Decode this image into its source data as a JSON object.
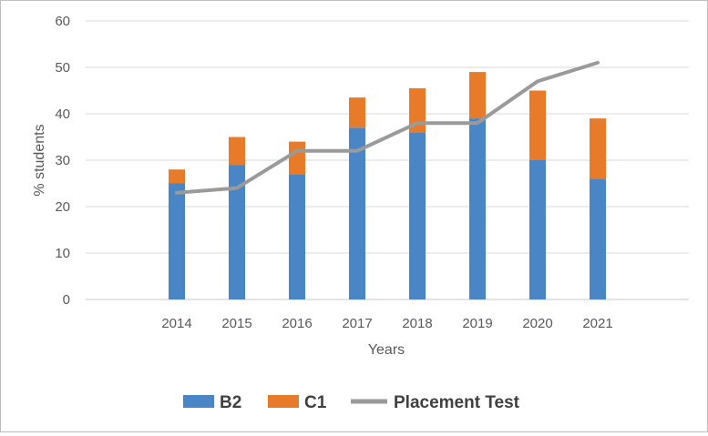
{
  "chart_data": {
    "type": "bar",
    "stacked": true,
    "title": "",
    "xlabel": "Years",
    "ylabel": "% students",
    "ylim": [
      0,
      60
    ],
    "yticks": [
      0,
      10,
      20,
      30,
      40,
      50,
      60
    ],
    "grid": true,
    "legend_position": "bottom",
    "categories": [
      "2014",
      "2015",
      "2016",
      "2017",
      "2018",
      "2019",
      "2020",
      "2021"
    ],
    "series": [
      {
        "name": "B2",
        "kind": "bar",
        "color": "#4a86c6",
        "values": [
          25,
          29,
          27,
          37,
          36,
          39,
          30,
          26
        ]
      },
      {
        "name": "C1",
        "kind": "bar",
        "color": "#e87b2a",
        "values": [
          3,
          6,
          7,
          6.5,
          9.5,
          10,
          15,
          13
        ]
      },
      {
        "name": "Placement Test",
        "kind": "line",
        "color": "#9a9a9a",
        "values": [
          23,
          24,
          32,
          32,
          38,
          38,
          47,
          51
        ]
      }
    ]
  }
}
